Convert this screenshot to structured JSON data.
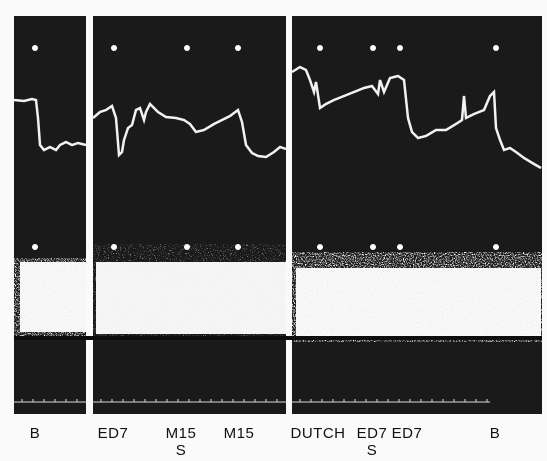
{
  "labels": {
    "b1": "B",
    "ed7_1": "ED7",
    "m15_1": "M15",
    "s1": "S",
    "m15_2": "M15",
    "dutch": "DUTCH",
    "ed7_2": "ED7",
    "s2": "S",
    "ed7_3": "ED7",
    "b2": "B"
  },
  "colors": {
    "background": "#1a1a1a",
    "trace": "#f2f2f2",
    "divider": "#fafafa"
  }
}
